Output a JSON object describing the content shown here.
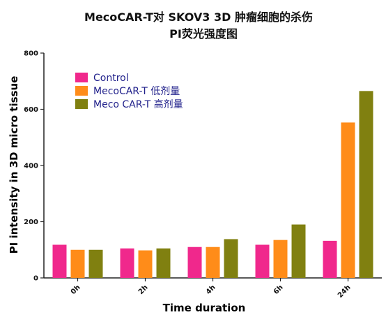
{
  "chart_data": {
    "type": "bar",
    "title_line1": "MecoCAR-T对 SKOV3 3D 肿瘤细胞的杀伤",
    "title_line2": "PI荧光强度图",
    "xlabel": "Time duration",
    "ylabel": "PI intensity in 3D micro tissue",
    "ylim": [
      0,
      800
    ],
    "yticks": [
      "0",
      "200",
      "400",
      "600",
      "800"
    ],
    "categories": [
      "0h",
      "2h",
      "4h",
      "6h",
      "24h"
    ],
    "legend_position": "top-left",
    "series": [
      {
        "name": "Control",
        "color": "#f0288c",
        "values": [
          118,
          105,
          110,
          118,
          132
        ]
      },
      {
        "name": "MecoCAR-T 低剂量",
        "color": "#ff8c19",
        "values": [
          100,
          98,
          110,
          135,
          553
        ]
      },
      {
        "name": "Meco CAR-T 高剂量",
        "color": "#808010",
        "values": [
          100,
          105,
          138,
          190,
          665
        ]
      }
    ]
  }
}
